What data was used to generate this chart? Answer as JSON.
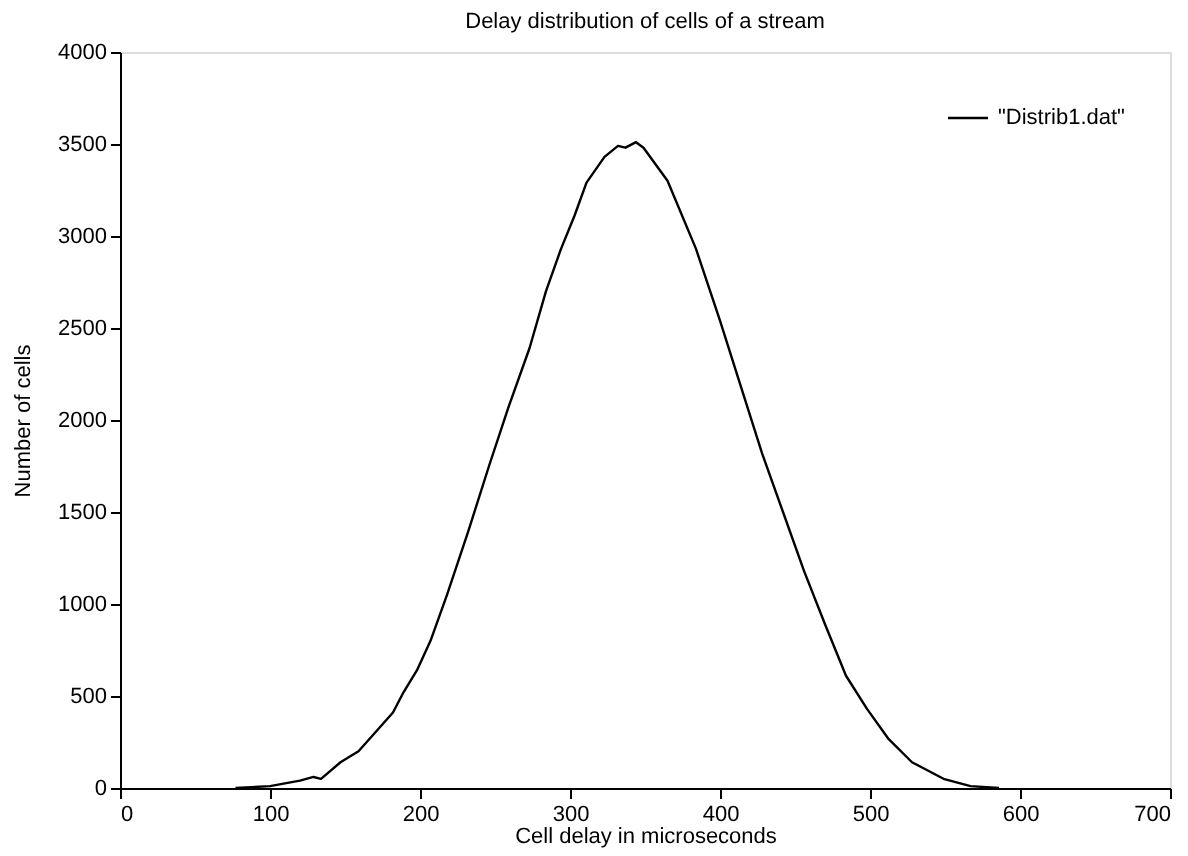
{
  "chart_data": {
    "type": "line",
    "title": "Delay distribution of cells of a stream",
    "xlabel": "Cell delay in microseconds",
    "ylabel": "Number of cells",
    "xlim": [
      0,
      700
    ],
    "xticks": [
      0,
      100,
      200,
      300,
      400,
      500,
      600,
      700
    ],
    "ylim": [
      0,
      4000
    ],
    "yticks": [
      0,
      500,
      1000,
      1500,
      2000,
      2500,
      3000,
      3500,
      4000
    ],
    "grid": false,
    "legend": "top right",
    "marker": "none",
    "line_style": "solid",
    "series": [
      {
        "name": "\"Distrib1.dat\"",
        "color": "#000000",
        "x": [
          77,
          100,
          120,
          129,
          134,
          147,
          159,
          170,
          182,
          189,
          198,
          207,
          218,
          232,
          246,
          259,
          273,
          284,
          294,
          303,
          311,
          323,
          332,
          337,
          344,
          349,
          365,
          384,
          400,
          414,
          428,
          442,
          456,
          470,
          484,
          498,
          512,
          528,
          549,
          567,
          586
        ],
        "values": [
          0,
          10,
          40,
          60,
          50,
          140,
          200,
          300,
          410,
          520,
          640,
          800,
          1050,
          1390,
          1750,
          2070,
          2390,
          2700,
          2930,
          3110,
          3290,
          3430,
          3490,
          3480,
          3510,
          3480,
          3300,
          2930,
          2540,
          2180,
          1820,
          1500,
          1180,
          890,
          610,
          430,
          270,
          140,
          50,
          10,
          0
        ]
      }
    ]
  }
}
